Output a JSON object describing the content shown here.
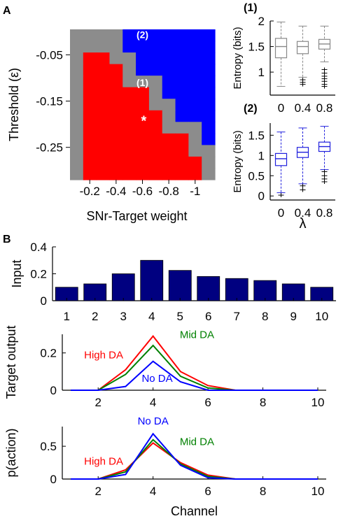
{
  "chart_data": [
    {
      "panel": "A",
      "type": "heatmap",
      "xlabel": "SNr-Target weight",
      "ylabel": "Threshold (ε)",
      "x_ticks": [
        "-0.2",
        "-0.4",
        "-0.6",
        "-0.8",
        "-1"
      ],
      "y_ticks": [
        "-0.05",
        "-0.15",
        "-0.25"
      ],
      "legend": {
        "gray": "#8c8c8c",
        "red": "#ff0000",
        "blue": "#0000ff"
      },
      "columns": [
        "-0.1",
        "-0.2",
        "-0.3",
        "-0.4",
        "-0.5",
        "-0.6",
        "-0.7",
        "-0.8",
        "-0.9",
        "-1",
        "-1.1"
      ],
      "rows": [
        "0",
        "-0.025",
        "-0.05",
        "-0.075",
        "-0.1",
        "-0.125",
        "-0.15",
        "-0.175",
        "-0.2",
        "-0.225",
        "-0.25",
        "-0.275",
        "-0.3"
      ],
      "grid": [
        "GGGGBBBBBBB",
        "GGGGBBBBBBB",
        "GRRGGBBBBBB",
        "GRRRGBBBBBB",
        "GRRRGGGBBBB",
        "GRRRRRGBBBB",
        "GRRRRRGGBBB",
        "GRRRRRRGBBB",
        "GRRRRRRGGGB",
        "GRRRRRRRRGB",
        "GRRRRRRRRGG",
        "GRRRRRRRRRG",
        "GRRRRRRRRRG"
      ],
      "annotations": [
        {
          "text": "(2)",
          "col": 5.5,
          "row": 0.75
        },
        {
          "text": "(1)",
          "col": 5.5,
          "row": 4.9
        },
        {
          "text": "*",
          "col": 5.6,
          "row": 8.3
        }
      ]
    },
    {
      "panel": "A (1)",
      "type": "box",
      "title": "(1)",
      "ylabel": "Entropy (bits)",
      "xlabel": "",
      "categories": [
        "0",
        "0.4",
        "0.8"
      ],
      "ylim": [
        0.55,
        2.0
      ],
      "yticks": [
        "1",
        "1.5",
        "2"
      ],
      "color": "#888888",
      "boxes": [
        {
          "min": 0.72,
          "q1": 1.28,
          "median": 1.5,
          "q3": 1.66,
          "max": 1.98,
          "outliers": []
        },
        {
          "min": 0.9,
          "q1": 1.36,
          "median": 1.5,
          "q3": 1.6,
          "max": 1.9,
          "outliers": [
            0.85,
            0.8,
            0.76
          ]
        },
        {
          "min": 1.2,
          "q1": 1.45,
          "median": 1.55,
          "q3": 1.64,
          "max": 1.9,
          "outliers": [
            1.05,
            0.98,
            0.92,
            0.87,
            0.82,
            0.76,
            0.72
          ]
        }
      ]
    },
    {
      "panel": "A (2)",
      "type": "box",
      "title": "(2)",
      "ylabel": "Entropy (bits)",
      "xlabel": "λ",
      "categories": [
        "0",
        "0.4",
        "0.8"
      ],
      "ylim": [
        -0.1,
        1.8
      ],
      "yticks": [
        "0",
        "0.5",
        "1",
        "1.5"
      ],
      "color": "#2020dd",
      "boxes": [
        {
          "min": 0.08,
          "q1": 0.75,
          "median": 0.92,
          "q3": 1.05,
          "max": 1.58,
          "outliers": [
            0.02
          ]
        },
        {
          "min": 0.3,
          "q1": 0.95,
          "median": 1.08,
          "q3": 1.2,
          "max": 1.68,
          "outliers": [
            0.25,
            0.15
          ]
        },
        {
          "min": 0.65,
          "q1": 1.1,
          "median": 1.22,
          "q3": 1.33,
          "max": 1.72,
          "outliers": [
            0.6,
            0.5,
            0.42,
            0.35
          ]
        }
      ]
    },
    {
      "panel": "B",
      "type": "bar",
      "ylabel": "Input",
      "xlabel": "",
      "categories": [
        "1",
        "2",
        "3",
        "4",
        "5",
        "6",
        "7",
        "8",
        "9",
        "10"
      ],
      "values": [
        0.1,
        0.125,
        0.2,
        0.3,
        0.225,
        0.18,
        0.165,
        0.15,
        0.125,
        0.1
      ],
      "ylim": [
        0,
        0.4
      ],
      "yticks": [
        "0",
        "0.2",
        "0.4"
      ],
      "color": "#000080"
    },
    {
      "panel": "B",
      "type": "line",
      "ylabel": "Target output",
      "xlabel": "",
      "x": [
        1,
        2,
        3,
        4,
        5,
        6,
        7,
        8,
        9,
        10
      ],
      "xlim": [
        1,
        10
      ],
      "ylim": [
        0,
        0.3
      ],
      "xticks": [
        "2",
        "4",
        "6",
        "8",
        "10"
      ],
      "yticks": [
        "0",
        "0.2"
      ],
      "series": [
        {
          "name": "High DA",
          "color": "#ff0000",
          "values": [
            0,
            0,
            0.11,
            0.29,
            0.1,
            0.025,
            0,
            0,
            0,
            0
          ]
        },
        {
          "name": "Mid DA",
          "color": "#008000",
          "values": [
            0,
            0,
            0.085,
            0.24,
            0.075,
            0.012,
            0,
            0,
            0,
            0
          ]
        },
        {
          "name": "No DA",
          "color": "#0000ff",
          "values": [
            0,
            0,
            0.02,
            0.155,
            0.045,
            0,
            0,
            0,
            0,
            0
          ]
        }
      ],
      "labels": [
        {
          "text": "High DA",
          "color": "#ff0000",
          "x": 2.2,
          "y": 0.17
        },
        {
          "text": "Mid DA",
          "color": "#008000",
          "x": 5.6,
          "y": 0.28
        },
        {
          "text": "No DA",
          "color": "#0000ff",
          "x": 4.15,
          "y": 0.045
        }
      ]
    },
    {
      "panel": "B",
      "type": "line",
      "ylabel": "p(action)",
      "xlabel": "Channel",
      "x": [
        1,
        2,
        3,
        4,
        5,
        6,
        7,
        8,
        9,
        10
      ],
      "xlim": [
        1,
        10
      ],
      "ylim": [
        0,
        0.8
      ],
      "xticks": [
        "2",
        "4",
        "6",
        "8",
        "10"
      ],
      "yticks": [
        "0",
        "0.5"
      ],
      "series": [
        {
          "name": "High DA",
          "color": "#ff0000",
          "values": [
            0,
            0,
            0.14,
            0.55,
            0.25,
            0.06,
            0,
            0,
            0,
            0
          ]
        },
        {
          "name": "Mid DA",
          "color": "#008000",
          "values": [
            0,
            0,
            0.11,
            0.6,
            0.23,
            0.04,
            0,
            0,
            0,
            0
          ]
        },
        {
          "name": "No DA",
          "color": "#0000ff",
          "values": [
            0,
            0,
            0.07,
            0.69,
            0.21,
            0.02,
            0,
            0,
            0,
            0
          ]
        }
      ],
      "labels": [
        {
          "text": "No DA",
          "color": "#0000ff",
          "x": 4,
          "y": 0.83
        },
        {
          "text": "Mid DA",
          "color": "#008000",
          "x": 5.6,
          "y": 0.52
        },
        {
          "text": "High DA",
          "color": "#ff0000",
          "x": 2.2,
          "y": 0.22
        }
      ]
    }
  ],
  "panel_labels": {
    "a": "A",
    "b": "B"
  }
}
